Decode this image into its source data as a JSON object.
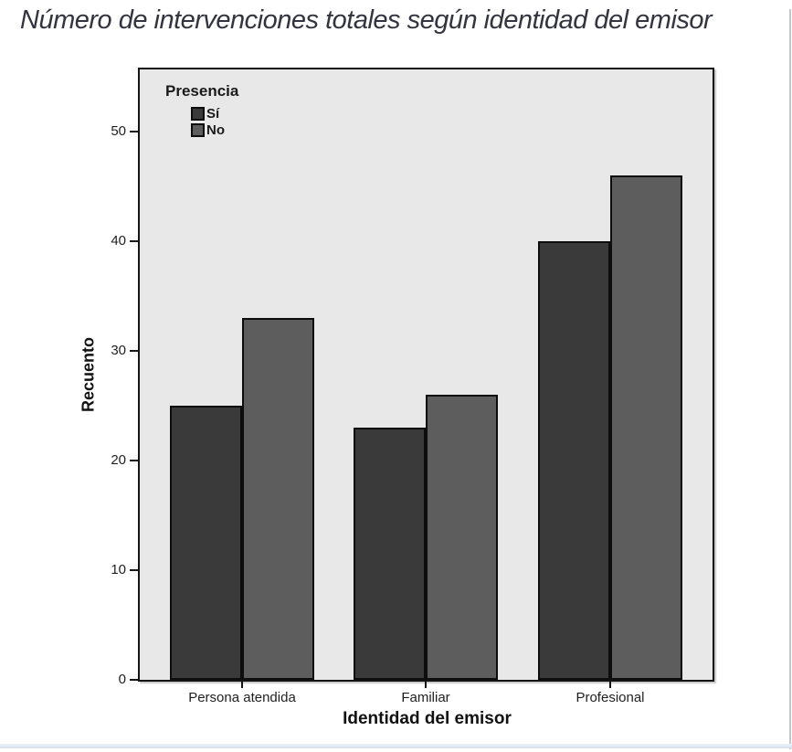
{
  "chart_data": {
    "type": "bar",
    "title": "Número de intervenciones totales según identidad del emisor",
    "categories": [
      "Persona atendida",
      "Familiar",
      "Profesional"
    ],
    "series": [
      {
        "name": "Sí",
        "values": [
          25,
          23,
          40
        ],
        "color": "#3a3a3a"
      },
      {
        "name": "No",
        "values": [
          33,
          26,
          46
        ],
        "color": "#5d5d5d"
      }
    ],
    "legend_title": "Presencia",
    "xlabel": "Identidad del emisor",
    "ylabel": "Recuento",
    "ylim": [
      0,
      55
    ],
    "yticks": [
      0,
      10,
      20,
      30,
      40,
      50
    ],
    "grid": false,
    "legend_position": "top-left-inside",
    "plot_background": "#e8e8e8",
    "axis_color": "#141414"
  }
}
